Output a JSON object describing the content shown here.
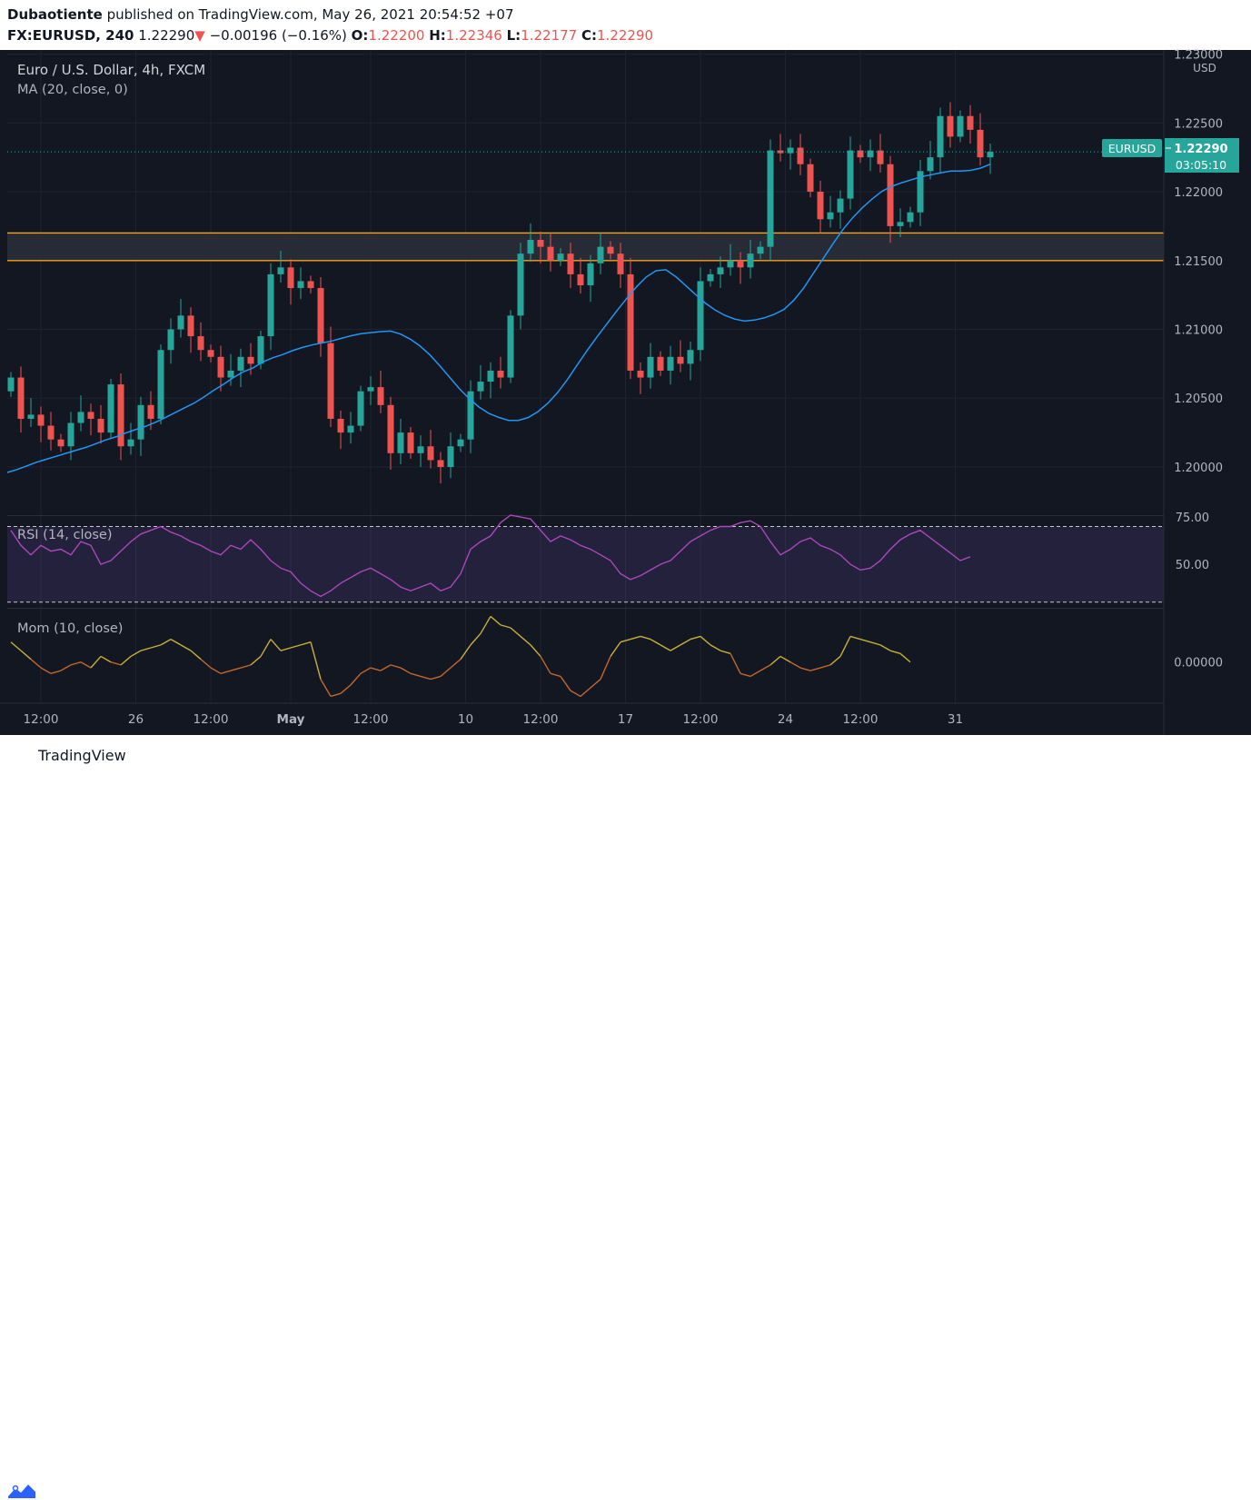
{
  "header": {
    "author": "Dubaotiente",
    "published_text": "published on TradingView.com, May 26, 2021 20:54:52 +07",
    "symbol": "FX:EURUSD, 240",
    "last": "1.22290",
    "arrow": "▼",
    "change": "−0.00196 (−0.16%)",
    "o_label": "O:",
    "o": "1.22200",
    "h_label": "H:",
    "h": "1.22346",
    "l_label": "L:",
    "l": "1.22177",
    "c_label": "C:",
    "c": "1.22290"
  },
  "legend": {
    "title": "Euro / U.S. Dollar, 4h, FXCM",
    "ma": "MA (20, close, 0)",
    "rsi": "RSI (14, close)",
    "mom": "Mom (10, close)"
  },
  "price_badge": {
    "symbol": "EURUSD",
    "price": "1.22290",
    "countdown": "03:05:10"
  },
  "currency": "USD",
  "footer": {
    "brand": "TradingView"
  },
  "colors": {
    "up": "#26a69a",
    "down": "#ef5350",
    "ma": "#2196f3",
    "rsi": "#ab47bc",
    "zone": "#f7a21b",
    "mom": "#d4a017"
  },
  "chart_data": {
    "type": "candlestick",
    "price_ticks": [
      "1.23000",
      "1.22500",
      "1.22000",
      "1.21500",
      "1.21000",
      "1.20500",
      "1.20000"
    ],
    "price_tick_values": [
      1.23,
      1.225,
      1.22,
      1.215,
      1.21,
      1.205,
      1.2
    ],
    "ylim": [
      1.1965,
      1.2303
    ],
    "time_ticks": [
      "12:00",
      "26",
      "12:00",
      "May",
      "12:00",
      "10",
      "12:00",
      "17",
      "12:00",
      "24",
      "12:00",
      "31"
    ],
    "time_tick_index": [
      3,
      12.5,
      20,
      28,
      36,
      45.5,
      53,
      61.5,
      69,
      77.5,
      85,
      94.5
    ],
    "zone": {
      "low": 1.215,
      "high": 1.217
    },
    "closes": [
      1.2065,
      1.2035,
      1.2038,
      1.203,
      1.202,
      1.2015,
      1.2032,
      1.204,
      1.2035,
      1.2025,
      1.206,
      1.2015,
      1.202,
      1.2045,
      1.2035,
      1.2085,
      1.21,
      1.211,
      1.2095,
      1.2085,
      1.208,
      1.2065,
      1.207,
      1.208,
      1.2075,
      1.2095,
      1.214,
      1.2145,
      1.213,
      1.2135,
      1.213,
      1.209,
      1.2035,
      1.2025,
      1.203,
      1.2055,
      1.2058,
      1.2045,
      1.201,
      1.2025,
      1.201,
      1.2015,
      1.2005,
      1.2,
      1.2015,
      1.202,
      1.2055,
      1.2062,
      1.207,
      1.2065,
      1.211,
      1.2155,
      1.2165,
      1.216,
      1.215,
      1.2155,
      1.214,
      1.2132,
      1.2148,
      1.216,
      1.2155,
      1.214,
      1.207,
      1.2065,
      1.208,
      1.207,
      1.208,
      1.2075,
      1.2085,
      1.2135,
      1.214,
      1.2145,
      1.215,
      1.2145,
      1.2155,
      1.216,
      1.223,
      1.2228,
      1.2232,
      1.222,
      1.22,
      1.218,
      1.2185,
      1.2195,
      1.223,
      1.2225,
      1.223,
      1.222,
      1.2175,
      1.2178,
      1.2185,
      1.2215,
      1.2225,
      1.2255,
      1.224,
      1.2255,
      1.2245,
      1.2225,
      1.2229
    ],
    "ma_values": [
      1.1996,
      1.1999,
      1.2003,
      1.2006,
      1.2009,
      1.2012,
      1.2015,
      1.2019,
      1.2022,
      1.2026,
      1.2029,
      1.2033,
      1.2038,
      1.2043,
      1.2048,
      1.2055,
      1.2061,
      1.2068,
      1.2072,
      1.2078,
      1.2081,
      1.2085,
      1.2088,
      1.209,
      1.2092,
      1.2095,
      1.2097,
      1.2098,
      1.2099,
      1.2096,
      1.209,
      1.2081,
      1.207,
      1.2058,
      1.2048,
      1.204,
      1.2036,
      1.2033,
      1.2035,
      1.2041,
      1.205,
      1.2063,
      1.2078,
      1.2092,
      1.2105,
      1.2118,
      1.213,
      1.214,
      1.2145,
      1.2138,
      1.2129,
      1.212,
      1.2113,
      1.2108,
      1.2106,
      1.2107,
      1.211,
      1.2115,
      1.2125,
      1.214,
      1.2155,
      1.217,
      1.2182,
      1.2192,
      1.22,
      1.2205,
      1.2208,
      1.2211,
      1.2213,
      1.2215,
      1.2215,
      1.2216,
      1.222
    ],
    "rsi_ticks": [
      "75.00",
      "50.00"
    ],
    "rsi_tick_values": [
      75,
      50
    ],
    "rsi_band": [
      70,
      30
    ],
    "rsi_ylim": [
      27,
      76
    ],
    "rsi_values": [
      68,
      60,
      55,
      60,
      57,
      58,
      55,
      62,
      60,
      50,
      52,
      57,
      62,
      66,
      68,
      70,
      67,
      65,
      62,
      60,
      57,
      55,
      60,
      58,
      63,
      58,
      52,
      48,
      46,
      40,
      36,
      33,
      36,
      40,
      43,
      46,
      48,
      45,
      42,
      38,
      36,
      38,
      40,
      36,
      38,
      45,
      58,
      62,
      65,
      72,
      76,
      75,
      74,
      68,
      62,
      65,
      63,
      60,
      58,
      55,
      52,
      45,
      42,
      44,
      47,
      50,
      52,
      57,
      62,
      65,
      68,
      70,
      70,
      72,
      73,
      70,
      62,
      55,
      58,
      62,
      64,
      60,
      58,
      55,
      50,
      47,
      48,
      52,
      58,
      63,
      66,
      68,
      64,
      60,
      56,
      52,
      54
    ],
    "mom_ticks": [
      "0.00000"
    ],
    "mom_tick_values": [
      0
    ],
    "mom_ylim": [
      -0.0072,
      0.0095
    ],
    "mom_values": [
      0.0035,
      0.002,
      0.0005,
      -0.001,
      -0.002,
      -0.0015,
      -0.0005,
      0.0,
      -0.001,
      0.001,
      0.0,
      -0.0005,
      0.001,
      0.002,
      0.0025,
      0.003,
      0.004,
      0.003,
      0.002,
      0.0005,
      -0.001,
      -0.002,
      -0.0015,
      -0.001,
      -0.0005,
      0.001,
      0.004,
      0.002,
      0.0025,
      0.003,
      0.0035,
      -0.003,
      -0.006,
      -0.0055,
      -0.004,
      -0.002,
      -0.001,
      -0.0015,
      -0.0005,
      -0.001,
      -0.002,
      -0.0025,
      -0.003,
      -0.0025,
      -0.001,
      0.0005,
      0.003,
      0.005,
      0.008,
      0.0065,
      0.006,
      0.0045,
      0.003,
      0.001,
      -0.002,
      -0.0025,
      -0.005,
      -0.006,
      -0.0045,
      -0.003,
      0.001,
      0.0035,
      0.004,
      0.0045,
      0.004,
      0.003,
      0.002,
      0.003,
      0.004,
      0.0045,
      0.003,
      0.002,
      0.0015,
      -0.002,
      -0.0025,
      -0.0015,
      -0.0005,
      0.001,
      0.0,
      -0.001,
      -0.0015,
      -0.001,
      -0.0005,
      0.001,
      0.0045,
      0.004,
      0.0035,
      0.003,
      0.002,
      0.0015,
      0.0
    ]
  }
}
